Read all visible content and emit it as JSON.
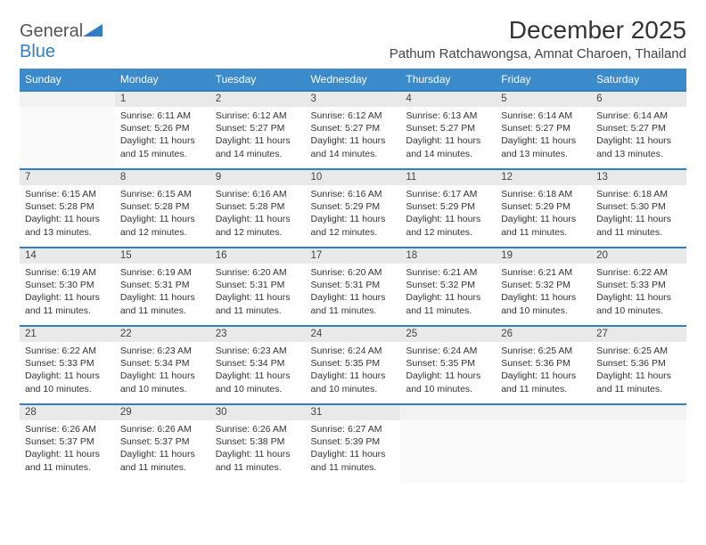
{
  "logo": {
    "text1": "General",
    "text2": "Blue"
  },
  "title": "December 2025",
  "location": "Pathum Ratchawongsa, Amnat Charoen, Thailand",
  "colors": {
    "header_bg": "#3b8aca",
    "header_text": "#ffffff",
    "daynum_bg": "#e9e9e9",
    "border_accent": "#2f7fc2"
  },
  "weekdays": [
    "Sunday",
    "Monday",
    "Tuesday",
    "Wednesday",
    "Thursday",
    "Friday",
    "Saturday"
  ],
  "weeks": [
    [
      null,
      {
        "n": "1",
        "sr": "Sunrise: 6:11 AM",
        "ss": "Sunset: 5:26 PM",
        "dl": "Daylight: 11 hours and 15 minutes."
      },
      {
        "n": "2",
        "sr": "Sunrise: 6:12 AM",
        "ss": "Sunset: 5:27 PM",
        "dl": "Daylight: 11 hours and 14 minutes."
      },
      {
        "n": "3",
        "sr": "Sunrise: 6:12 AM",
        "ss": "Sunset: 5:27 PM",
        "dl": "Daylight: 11 hours and 14 minutes."
      },
      {
        "n": "4",
        "sr": "Sunrise: 6:13 AM",
        "ss": "Sunset: 5:27 PM",
        "dl": "Daylight: 11 hours and 14 minutes."
      },
      {
        "n": "5",
        "sr": "Sunrise: 6:14 AM",
        "ss": "Sunset: 5:27 PM",
        "dl": "Daylight: 11 hours and 13 minutes."
      },
      {
        "n": "6",
        "sr": "Sunrise: 6:14 AM",
        "ss": "Sunset: 5:27 PM",
        "dl": "Daylight: 11 hours and 13 minutes."
      }
    ],
    [
      {
        "n": "7",
        "sr": "Sunrise: 6:15 AM",
        "ss": "Sunset: 5:28 PM",
        "dl": "Daylight: 11 hours and 13 minutes."
      },
      {
        "n": "8",
        "sr": "Sunrise: 6:15 AM",
        "ss": "Sunset: 5:28 PM",
        "dl": "Daylight: 11 hours and 12 minutes."
      },
      {
        "n": "9",
        "sr": "Sunrise: 6:16 AM",
        "ss": "Sunset: 5:28 PM",
        "dl": "Daylight: 11 hours and 12 minutes."
      },
      {
        "n": "10",
        "sr": "Sunrise: 6:16 AM",
        "ss": "Sunset: 5:29 PM",
        "dl": "Daylight: 11 hours and 12 minutes."
      },
      {
        "n": "11",
        "sr": "Sunrise: 6:17 AM",
        "ss": "Sunset: 5:29 PM",
        "dl": "Daylight: 11 hours and 12 minutes."
      },
      {
        "n": "12",
        "sr": "Sunrise: 6:18 AM",
        "ss": "Sunset: 5:29 PM",
        "dl": "Daylight: 11 hours and 11 minutes."
      },
      {
        "n": "13",
        "sr": "Sunrise: 6:18 AM",
        "ss": "Sunset: 5:30 PM",
        "dl": "Daylight: 11 hours and 11 minutes."
      }
    ],
    [
      {
        "n": "14",
        "sr": "Sunrise: 6:19 AM",
        "ss": "Sunset: 5:30 PM",
        "dl": "Daylight: 11 hours and 11 minutes."
      },
      {
        "n": "15",
        "sr": "Sunrise: 6:19 AM",
        "ss": "Sunset: 5:31 PM",
        "dl": "Daylight: 11 hours and 11 minutes."
      },
      {
        "n": "16",
        "sr": "Sunrise: 6:20 AM",
        "ss": "Sunset: 5:31 PM",
        "dl": "Daylight: 11 hours and 11 minutes."
      },
      {
        "n": "17",
        "sr": "Sunrise: 6:20 AM",
        "ss": "Sunset: 5:31 PM",
        "dl": "Daylight: 11 hours and 11 minutes."
      },
      {
        "n": "18",
        "sr": "Sunrise: 6:21 AM",
        "ss": "Sunset: 5:32 PM",
        "dl": "Daylight: 11 hours and 11 minutes."
      },
      {
        "n": "19",
        "sr": "Sunrise: 6:21 AM",
        "ss": "Sunset: 5:32 PM",
        "dl": "Daylight: 11 hours and 10 minutes."
      },
      {
        "n": "20",
        "sr": "Sunrise: 6:22 AM",
        "ss": "Sunset: 5:33 PM",
        "dl": "Daylight: 11 hours and 10 minutes."
      }
    ],
    [
      {
        "n": "21",
        "sr": "Sunrise: 6:22 AM",
        "ss": "Sunset: 5:33 PM",
        "dl": "Daylight: 11 hours and 10 minutes."
      },
      {
        "n": "22",
        "sr": "Sunrise: 6:23 AM",
        "ss": "Sunset: 5:34 PM",
        "dl": "Daylight: 11 hours and 10 minutes."
      },
      {
        "n": "23",
        "sr": "Sunrise: 6:23 AM",
        "ss": "Sunset: 5:34 PM",
        "dl": "Daylight: 11 hours and 10 minutes."
      },
      {
        "n": "24",
        "sr": "Sunrise: 6:24 AM",
        "ss": "Sunset: 5:35 PM",
        "dl": "Daylight: 11 hours and 10 minutes."
      },
      {
        "n": "25",
        "sr": "Sunrise: 6:24 AM",
        "ss": "Sunset: 5:35 PM",
        "dl": "Daylight: 11 hours and 10 minutes."
      },
      {
        "n": "26",
        "sr": "Sunrise: 6:25 AM",
        "ss": "Sunset: 5:36 PM",
        "dl": "Daylight: 11 hours and 11 minutes."
      },
      {
        "n": "27",
        "sr": "Sunrise: 6:25 AM",
        "ss": "Sunset: 5:36 PM",
        "dl": "Daylight: 11 hours and 11 minutes."
      }
    ],
    [
      {
        "n": "28",
        "sr": "Sunrise: 6:26 AM",
        "ss": "Sunset: 5:37 PM",
        "dl": "Daylight: 11 hours and 11 minutes."
      },
      {
        "n": "29",
        "sr": "Sunrise: 6:26 AM",
        "ss": "Sunset: 5:37 PM",
        "dl": "Daylight: 11 hours and 11 minutes."
      },
      {
        "n": "30",
        "sr": "Sunrise: 6:26 AM",
        "ss": "Sunset: 5:38 PM",
        "dl": "Daylight: 11 hours and 11 minutes."
      },
      {
        "n": "31",
        "sr": "Sunrise: 6:27 AM",
        "ss": "Sunset: 5:39 PM",
        "dl": "Daylight: 11 hours and 11 minutes."
      },
      null,
      null,
      null
    ]
  ]
}
